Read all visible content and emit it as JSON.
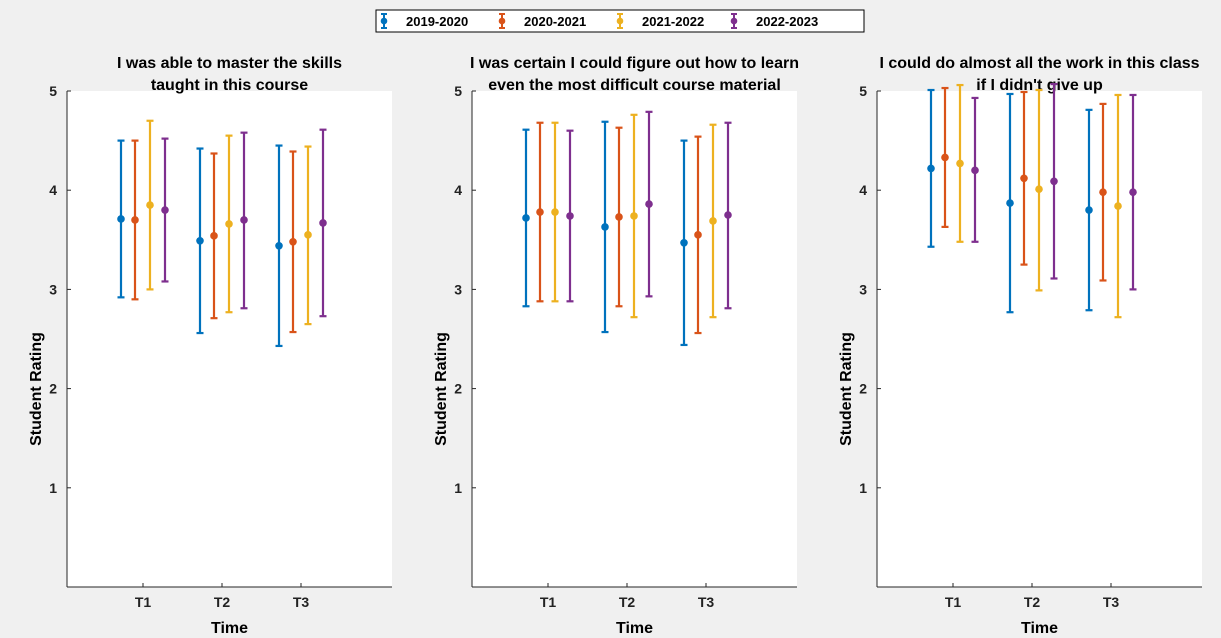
{
  "legend": {
    "entries": [
      {
        "name": "2019-2020",
        "color": "#0072BD"
      },
      {
        "name": "2020-2021",
        "color": "#D95319"
      },
      {
        "name": "2021-2022",
        "color": "#EDB120"
      },
      {
        "name": "2022-2023",
        "color": "#7E2F8E"
      }
    ]
  },
  "chart_data": [
    {
      "type": "errorbar",
      "title": [
        "I was able to master the skills",
        "taught in this course"
      ],
      "xlabel": "Time",
      "ylabel": "Student Rating",
      "categories": [
        "T1",
        "T2",
        "T3"
      ],
      "ylim": [
        0,
        5
      ],
      "yticks": [
        1,
        2,
        3,
        4,
        5
      ],
      "grid": false,
      "series": [
        {
          "name": "2019-2020",
          "mean": [
            3.71,
            3.49,
            3.44
          ],
          "low": [
            2.92,
            2.56,
            2.43
          ],
          "high": [
            4.5,
            4.42,
            4.45
          ]
        },
        {
          "name": "2020-2021",
          "mean": [
            3.7,
            3.54,
            3.48
          ],
          "low": [
            2.9,
            2.71,
            2.57
          ],
          "high": [
            4.5,
            4.37,
            4.39
          ]
        },
        {
          "name": "2021-2022",
          "mean": [
            3.85,
            3.66,
            3.55
          ],
          "low": [
            3.0,
            2.77,
            2.65
          ],
          "high": [
            4.7,
            4.55,
            4.44
          ]
        },
        {
          "name": "2022-2023",
          "mean": [
            3.8,
            3.7,
            3.67
          ],
          "low": [
            3.08,
            2.81,
            2.73
          ],
          "high": [
            4.52,
            4.58,
            4.61
          ]
        }
      ]
    },
    {
      "type": "errorbar",
      "title": [
        "I was certain I could figure out how to learn",
        "even the most difficult course material"
      ],
      "xlabel": "Time",
      "ylabel": "Student Rating",
      "categories": [
        "T1",
        "T2",
        "T3"
      ],
      "ylim": [
        0,
        5
      ],
      "yticks": [
        1,
        2,
        3,
        4,
        5
      ],
      "grid": false,
      "series": [
        {
          "name": "2019-2020",
          "mean": [
            3.72,
            3.63,
            3.47
          ],
          "low": [
            2.83,
            2.57,
            2.44
          ],
          "high": [
            4.61,
            4.69,
            4.5
          ]
        },
        {
          "name": "2020-2021",
          "mean": [
            3.78,
            3.73,
            3.55
          ],
          "low": [
            2.88,
            2.83,
            2.56
          ],
          "high": [
            4.68,
            4.63,
            4.54
          ]
        },
        {
          "name": "2021-2022",
          "mean": [
            3.78,
            3.74,
            3.69
          ],
          "low": [
            2.88,
            2.72,
            2.72
          ],
          "high": [
            4.68,
            4.76,
            4.66
          ]
        },
        {
          "name": "2022-2023",
          "mean": [
            3.74,
            3.86,
            3.75
          ],
          "low": [
            2.88,
            2.93,
            2.81
          ],
          "high": [
            4.6,
            4.79,
            4.68
          ]
        }
      ]
    },
    {
      "type": "errorbar",
      "title": [
        "I could do almost all the work in this class",
        "if I didn't give up"
      ],
      "xlabel": "Time",
      "ylabel": "Student Rating",
      "categories": [
        "T1",
        "T2",
        "T3"
      ],
      "ylim": [
        0,
        5
      ],
      "yticks": [
        1,
        2,
        3,
        4,
        5
      ],
      "grid": false,
      "series": [
        {
          "name": "2019-2020",
          "mean": [
            4.22,
            3.87,
            3.8
          ],
          "low": [
            3.43,
            2.77,
            2.79
          ],
          "high": [
            5.01,
            4.97,
            4.81
          ]
        },
        {
          "name": "2020-2021",
          "mean": [
            4.33,
            4.12,
            3.98
          ],
          "low": [
            3.63,
            3.25,
            3.09
          ],
          "high": [
            5.03,
            4.99,
            4.87
          ]
        },
        {
          "name": "2021-2022",
          "mean": [
            4.27,
            4.01,
            3.84
          ],
          "low": [
            3.48,
            2.99,
            2.72
          ],
          "high": [
            5.06,
            5.01,
            4.96
          ]
        },
        {
          "name": "2022-2023",
          "mean": [
            4.2,
            4.09,
            3.98
          ],
          "low": [
            3.48,
            3.11,
            3.0
          ],
          "high": [
            4.93,
            5.07,
            4.96
          ]
        }
      ]
    }
  ]
}
